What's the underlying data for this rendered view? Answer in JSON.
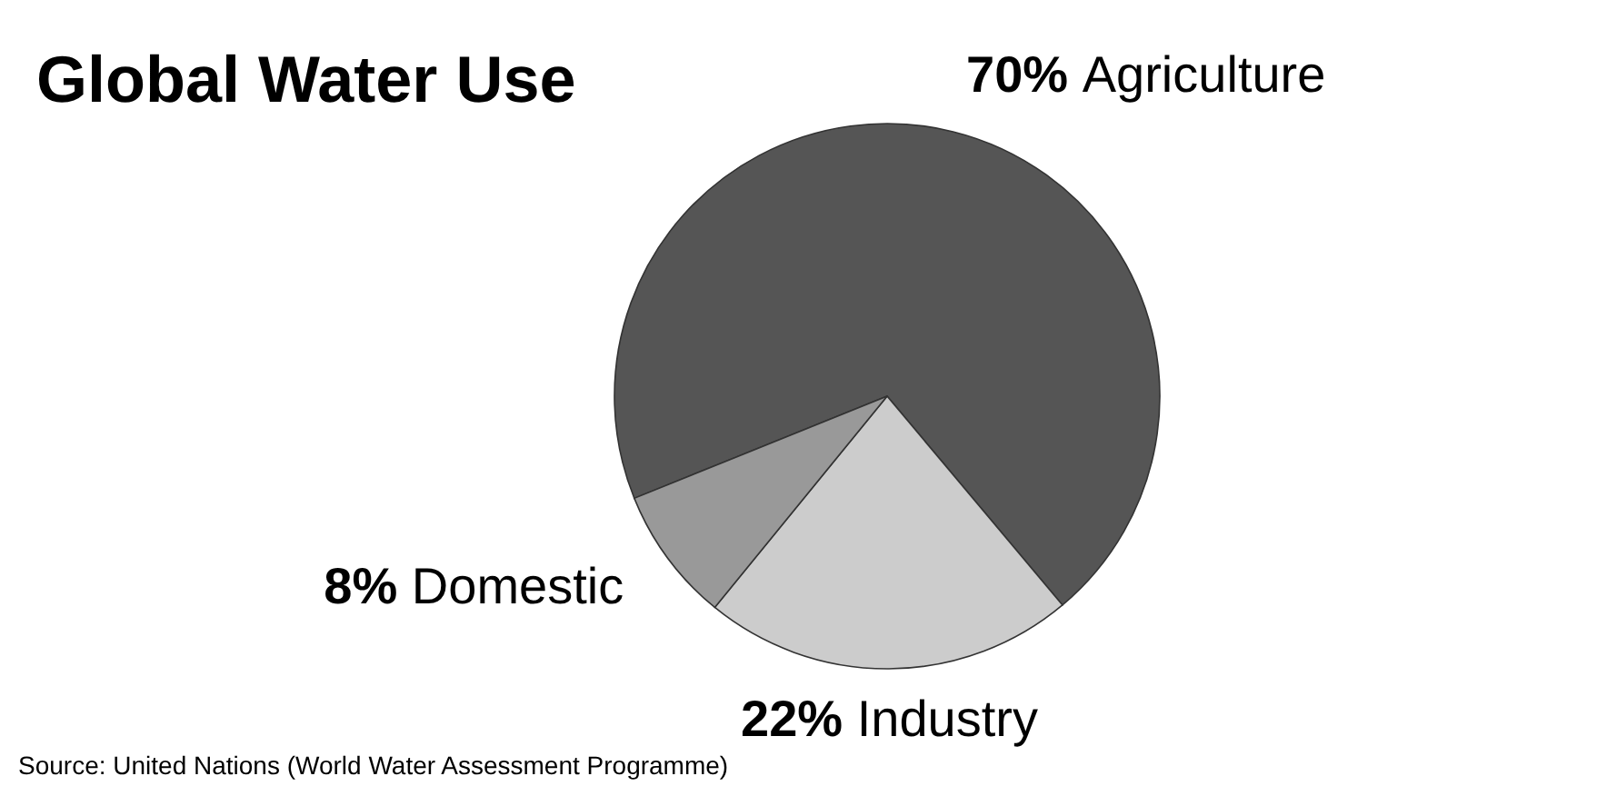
{
  "chart_data": {
    "type": "pie",
    "title": "Global Water Use",
    "categories": [
      "Agriculture",
      "Industry",
      "Domestic"
    ],
    "values": [
      70,
      22,
      8
    ],
    "value_labels": [
      "70%",
      "22%",
      "8%"
    ],
    "colors": [
      "#555555",
      "#cccccc",
      "#999999"
    ],
    "annotations": [
      "Source: United Nations (World Water Assessment Programme)"
    ]
  }
}
